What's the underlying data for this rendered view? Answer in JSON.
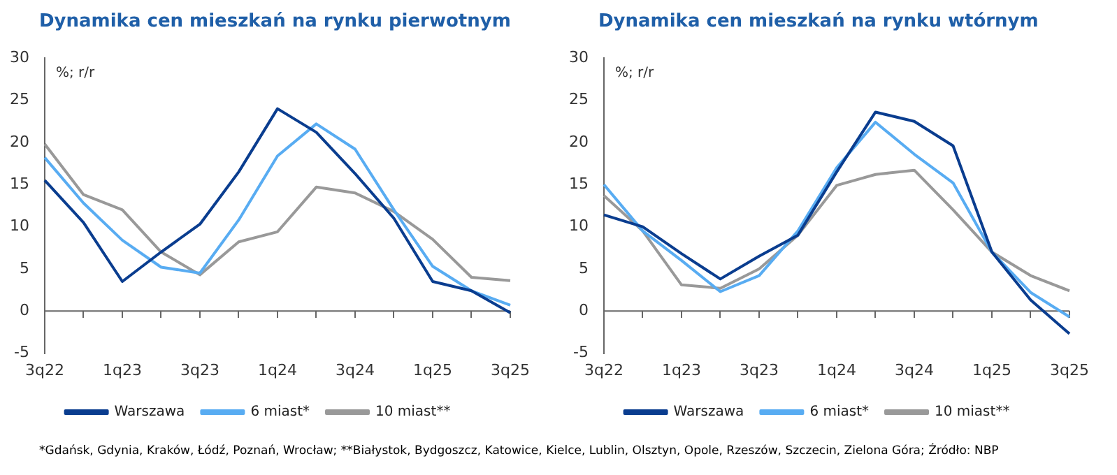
{
  "chart_data": [
    {
      "type": "line",
      "title": "Dynamika cen mieszkań na rynku pierwotnym",
      "ylabel": "%; r/r",
      "categories": [
        "3q22",
        null,
        "1q23",
        null,
        "3q23",
        null,
        "1q24",
        null,
        "3q24",
        null,
        "1q25",
        null,
        "3q25"
      ],
      "series": [
        {
          "name": "Warszawa",
          "color": "#0a3d8f",
          "values": [
            15.5,
            10.5,
            3.5,
            7,
            10.3,
            16.5,
            24,
            21.2,
            16.3,
            11,
            3.5,
            2.4,
            -0.2
          ]
        },
        {
          "name": "6 miast*",
          "color": "#58acf2",
          "values": [
            18.2,
            12.8,
            8.4,
            5.2,
            4.5,
            10.8,
            18.4,
            22.2,
            19.2,
            12,
            5.3,
            2.4,
            0.7
          ]
        },
        {
          "name": "10 miast**",
          "color": "#999999",
          "values": [
            19.8,
            13.8,
            12,
            7,
            4.3,
            8.2,
            9.4,
            14.7,
            14,
            11.8,
            8.5,
            4,
            3.6
          ]
        }
      ],
      "ylim": [
        -5,
        30
      ],
      "yticks": [
        -5,
        0,
        5,
        10,
        15,
        20,
        25,
        30
      ],
      "grid": false,
      "legend": "bottom",
      "marker": "none",
      "ref_lines": [
        {
          "axis": "y",
          "value": 0,
          "color": "#666666"
        }
      ],
      "annotations": [
        "*Gdańsk, Gdynia, Kraków, Łódź, Poznań, Wrocław; **Białystok, Bydgoszcz, Katowice, Kielce, Lublin, Olsztyn, Opole, Rzeszów, Szczecin, Zielona Góra;   Źródło: NBP"
      ]
    },
    {
      "type": "line",
      "title": "Dynamika cen mieszkań na rynku wtórnym",
      "ylabel": "%; r/r",
      "categories": [
        "3q22",
        null,
        "1q23",
        null,
        "3q23",
        null,
        "1q24",
        null,
        "3q24",
        null,
        "1q25",
        null,
        "3q25"
      ],
      "series": [
        {
          "name": "Warszawa",
          "color": "#0a3d8f",
          "values": [
            11.4,
            10,
            6.8,
            3.8,
            6.5,
            9,
            16.5,
            23.6,
            22.5,
            19.6,
            7,
            1.3,
            -2.7
          ]
        },
        {
          "name": "6 miast*",
          "color": "#58acf2",
          "values": [
            15,
            9.5,
            6,
            2.3,
            4.2,
            9.5,
            17,
            22.4,
            18.6,
            15.2,
            7,
            2.2,
            -0.7
          ]
        },
        {
          "name": "10 miast**",
          "color": "#999999",
          "values": [
            13.7,
            9.5,
            3.1,
            2.7,
            5,
            9,
            14.9,
            16.2,
            16.7,
            12,
            7,
            4.2,
            2.4
          ]
        }
      ],
      "ylim": [
        -5,
        30
      ],
      "yticks": [
        -5,
        0,
        5,
        10,
        15,
        20,
        25,
        30
      ],
      "grid": false,
      "legend": "bottom",
      "marker": "none",
      "ref_lines": [
        {
          "axis": "y",
          "value": 0,
          "color": "#666666"
        }
      ]
    }
  ]
}
